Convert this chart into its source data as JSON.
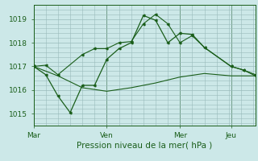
{
  "bg_color": "#cce8e8",
  "grid_color": "#99bbbb",
  "line_color": "#1a5e1a",
  "xlabel": "Pression niveau de la mer( hPa )",
  "ylim": [
    1014.5,
    1019.6
  ],
  "yticks": [
    1015,
    1016,
    1017,
    1018,
    1019
  ],
  "xtick_labels": [
    "Mar",
    "Ven",
    "Mer",
    "Jeu"
  ],
  "day_boundaries": [
    0.0,
    0.33,
    0.66,
    0.89
  ],
  "series1_x": [
    0.0,
    0.055,
    0.11,
    0.22,
    0.275,
    0.33,
    0.385,
    0.44,
    0.495,
    0.55,
    0.605,
    0.66,
    0.715,
    0.77,
    0.89,
    0.945,
    1.0
  ],
  "series1_y": [
    1017.0,
    1017.05,
    1016.65,
    1017.5,
    1017.75,
    1017.75,
    1018.0,
    1018.05,
    1018.8,
    1019.2,
    1018.8,
    1018.0,
    1018.3,
    1017.8,
    1017.0,
    1016.85,
    1016.6
  ],
  "series2_x": [
    0.0,
    0.11,
    0.22,
    0.33,
    0.44,
    0.55,
    0.66,
    0.77,
    0.89,
    1.0
  ],
  "series2_y": [
    1017.0,
    1016.6,
    1016.1,
    1015.95,
    1016.1,
    1016.3,
    1016.55,
    1016.7,
    1016.6,
    1016.6
  ],
  "series3_x": [
    0.0,
    0.055,
    0.11,
    0.165,
    0.22,
    0.275,
    0.33,
    0.385,
    0.44,
    0.495,
    0.55,
    0.605,
    0.66,
    0.715,
    0.77,
    0.89,
    0.945,
    1.0
  ],
  "series3_y": [
    1017.0,
    1016.65,
    1015.75,
    1015.05,
    1016.2,
    1016.2,
    1017.3,
    1017.75,
    1018.0,
    1019.15,
    1018.95,
    1018.0,
    1018.4,
    1018.35,
    1017.8,
    1017.0,
    1016.85,
    1016.65
  ]
}
